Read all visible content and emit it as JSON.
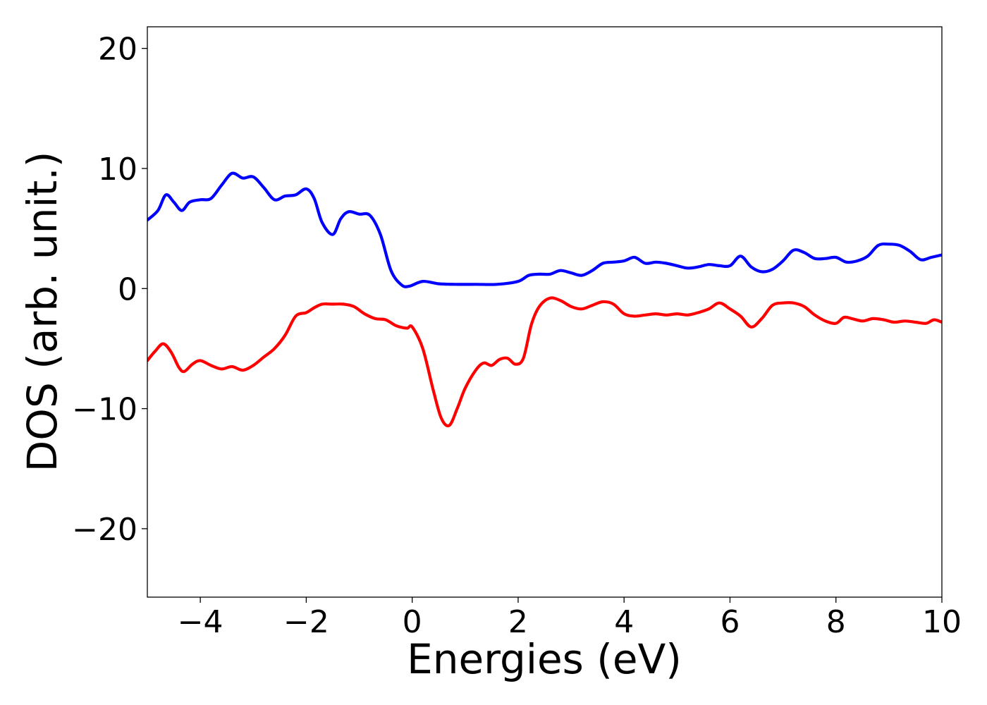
{
  "chart_data": {
    "type": "line",
    "title": "",
    "xlabel": "Energies (eV)",
    "ylabel": "DOS (arb. unit.)",
    "xlim": [
      -5,
      10
    ],
    "ylim": [
      -25.7,
      21.8
    ],
    "grid": false,
    "x_ticks": [
      -4,
      -2,
      0,
      2,
      4,
      6,
      8,
      10
    ],
    "x_tick_labels": [
      "−4",
      "−2",
      "0",
      "2",
      "4",
      "6",
      "8",
      "10"
    ],
    "y_ticks": [
      -20,
      -10,
      0,
      10,
      20
    ],
    "y_tick_labels": [
      "−20",
      "−10",
      "0",
      "10",
      "20"
    ],
    "series": [
      {
        "color": "#0000ff",
        "x": [
          -5.0,
          -4.8,
          -4.65,
          -4.5,
          -4.35,
          -4.2,
          -4.0,
          -3.8,
          -3.6,
          -3.4,
          -3.2,
          -3.0,
          -2.8,
          -2.6,
          -2.4,
          -2.2,
          -2.0,
          -1.85,
          -1.7,
          -1.5,
          -1.35,
          -1.2,
          -1.0,
          -0.8,
          -0.6,
          -0.4,
          -0.2,
          -0.05,
          0.2,
          0.5,
          0.8,
          1.2,
          1.6,
          2.0,
          2.2,
          2.4,
          2.6,
          2.8,
          3.0,
          3.2,
          3.4,
          3.6,
          3.8,
          4.0,
          4.2,
          4.4,
          4.6,
          4.8,
          5.0,
          5.2,
          5.4,
          5.6,
          5.8,
          6.0,
          6.2,
          6.4,
          6.6,
          6.8,
          7.0,
          7.2,
          7.4,
          7.6,
          7.8,
          8.0,
          8.2,
          8.4,
          8.6,
          8.8,
          9.0,
          9.2,
          9.4,
          9.6,
          9.8,
          10.0
        ],
        "y": [
          5.7,
          6.5,
          7.8,
          7.2,
          6.5,
          7.2,
          7.4,
          7.5,
          8.6,
          9.6,
          9.2,
          9.3,
          8.4,
          7.4,
          7.7,
          7.8,
          8.3,
          7.5,
          5.5,
          4.5,
          5.8,
          6.4,
          6.2,
          6.1,
          4.5,
          1.5,
          0.3,
          0.2,
          0.6,
          0.4,
          0.35,
          0.35,
          0.35,
          0.6,
          1.1,
          1.2,
          1.2,
          1.5,
          1.3,
          1.1,
          1.5,
          2.1,
          2.2,
          2.3,
          2.6,
          2.1,
          2.2,
          2.1,
          1.9,
          1.7,
          1.8,
          2.0,
          1.9,
          1.9,
          2.7,
          1.8,
          1.4,
          1.6,
          2.3,
          3.2,
          3.0,
          2.5,
          2.5,
          2.6,
          2.2,
          2.3,
          2.7,
          3.6,
          3.7,
          3.6,
          3.1,
          2.4,
          2.6,
          2.8
        ]
      },
      {
        "color": "#ff0000",
        "x": [
          -5.0,
          -4.85,
          -4.7,
          -4.55,
          -4.4,
          -4.3,
          -4.15,
          -4.0,
          -3.8,
          -3.6,
          -3.4,
          -3.2,
          -3.0,
          -2.8,
          -2.6,
          -2.4,
          -2.2,
          -2.0,
          -1.85,
          -1.7,
          -1.5,
          -1.3,
          -1.1,
          -0.9,
          -0.7,
          -0.5,
          -0.3,
          -0.1,
          0.0,
          0.2,
          0.4,
          0.55,
          0.7,
          0.85,
          1.0,
          1.2,
          1.35,
          1.5,
          1.65,
          1.8,
          1.95,
          2.1,
          2.25,
          2.4,
          2.6,
          2.8,
          3.0,
          3.2,
          3.4,
          3.6,
          3.8,
          4.0,
          4.2,
          4.4,
          4.6,
          4.8,
          5.0,
          5.2,
          5.4,
          5.6,
          5.8,
          6.0,
          6.2,
          6.4,
          6.6,
          6.8,
          7.0,
          7.2,
          7.4,
          7.6,
          7.8,
          8.0,
          8.15,
          8.3,
          8.5,
          8.7,
          8.9,
          9.1,
          9.3,
          9.5,
          9.7,
          9.85,
          10.0
        ],
        "y": [
          -6.0,
          -5.2,
          -4.6,
          -5.3,
          -6.6,
          -6.9,
          -6.3,
          -6.0,
          -6.4,
          -6.7,
          -6.5,
          -6.8,
          -6.4,
          -5.7,
          -5.0,
          -3.9,
          -2.3,
          -2.0,
          -1.6,
          -1.3,
          -1.3,
          -1.3,
          -1.5,
          -2.1,
          -2.5,
          -2.6,
          -3.1,
          -3.3,
          -3.2,
          -5.0,
          -8.5,
          -10.8,
          -11.4,
          -10.0,
          -8.3,
          -6.8,
          -6.2,
          -6.4,
          -5.9,
          -5.8,
          -6.3,
          -5.8,
          -3.0,
          -1.5,
          -0.8,
          -1.0,
          -1.5,
          -1.7,
          -1.4,
          -1.1,
          -1.3,
          -2.1,
          -2.3,
          -2.2,
          -2.1,
          -2.2,
          -2.1,
          -2.2,
          -2.0,
          -1.7,
          -1.2,
          -1.7,
          -2.3,
          -3.2,
          -2.5,
          -1.4,
          -1.2,
          -1.2,
          -1.5,
          -2.2,
          -2.7,
          -2.9,
          -2.4,
          -2.5,
          -2.7,
          -2.5,
          -2.6,
          -2.8,
          -2.7,
          -2.8,
          -2.9,
          -2.6,
          -2.8
        ]
      }
    ]
  }
}
